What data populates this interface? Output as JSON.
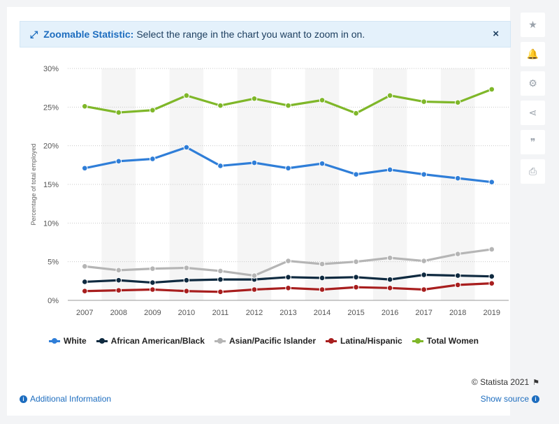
{
  "banner": {
    "icon": "expand-arrows-icon",
    "strong": "Zoomable Statistic:",
    "text": "Select the range in the chart you want to zoom in on.",
    "close": "×"
  },
  "toolbar": [
    {
      "name": "favorite-star-icon",
      "glyph": "★"
    },
    {
      "name": "notification-bell-icon",
      "glyph": "🔔"
    },
    {
      "name": "settings-gear-icon",
      "glyph": "⚙"
    },
    {
      "name": "share-icon",
      "glyph": "⋖"
    },
    {
      "name": "citation-quote-icon",
      "glyph": "❞"
    },
    {
      "name": "print-icon",
      "glyph": "⎙"
    }
  ],
  "footer": {
    "copyright": "© Statista 2021",
    "additional_info": "Additional Information",
    "show_source": "Show source"
  },
  "chart_data": {
    "type": "line",
    "title": "",
    "xlabel": "",
    "ylabel": "Percentage of total employed",
    "ylim": [
      0,
      30
    ],
    "yticks": [
      "0%",
      "5%",
      "10%",
      "15%",
      "20%",
      "25%",
      "30%"
    ],
    "x": [
      "2007",
      "2008",
      "2009",
      "2010",
      "2011",
      "2012",
      "2013",
      "2014",
      "2015",
      "2016",
      "2017",
      "2018",
      "2019"
    ],
    "grid": true,
    "legend_position": "bottom",
    "series": [
      {
        "name": "White",
        "color": "#2f7ed8",
        "values": [
          17.1,
          18.0,
          18.3,
          19.8,
          17.4,
          17.8,
          17.1,
          17.7,
          16.3,
          16.9,
          16.3,
          15.8,
          15.3
        ]
      },
      {
        "name": "African American/Black",
        "color": "#0f2a40",
        "values": [
          2.4,
          2.6,
          2.3,
          2.6,
          2.7,
          2.7,
          3.0,
          2.9,
          3.0,
          2.7,
          3.3,
          3.2,
          3.1
        ]
      },
      {
        "name": "Asian/Pacific Islander",
        "color": "#b5b5b5",
        "values": [
          4.4,
          3.9,
          4.1,
          4.2,
          3.8,
          3.2,
          5.1,
          4.7,
          5.0,
          5.5,
          5.1,
          6.0,
          6.6
        ]
      },
      {
        "name": "Latina/Hispanic",
        "color": "#a81e1e",
        "values": [
          1.2,
          1.3,
          1.4,
          1.2,
          1.1,
          1.4,
          1.6,
          1.4,
          1.7,
          1.6,
          1.4,
          2.0,
          2.2
        ]
      },
      {
        "name": "Total Women",
        "color": "#7fb729",
        "values": [
          25.1,
          24.3,
          24.6,
          26.5,
          25.2,
          26.1,
          25.2,
          25.9,
          24.2,
          26.5,
          25.7,
          25.6,
          27.3
        ]
      }
    ]
  }
}
